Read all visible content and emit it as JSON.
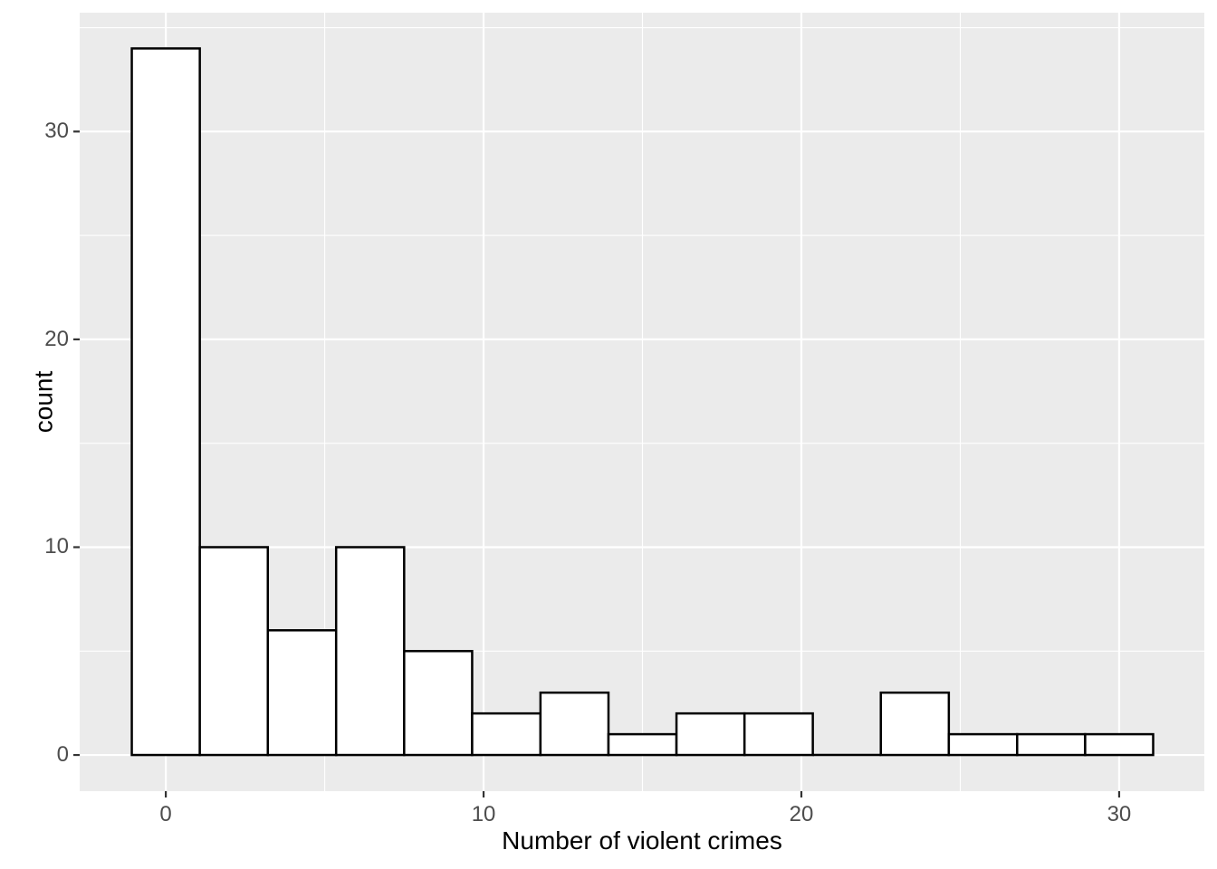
{
  "figure": {
    "background_color": "#FFFFFF",
    "panel_background_color": "#EBEBEB",
    "grid_major_color": "#FFFFFF",
    "grid_minor_color": "#FFFFFF",
    "bar_fill_color": "#FFFFFF",
    "bar_stroke_color": "#000000",
    "tick_mark_color": "#333333",
    "tick_label_color": "#4D4D4D",
    "axis_title_color": "#000000"
  },
  "chart_data": {
    "type": "bar",
    "subtype": "histogram",
    "title": "",
    "xlabel": "Number of violent crimes",
    "ylabel": "count",
    "bin_edges": [
      -1.07,
      1.07,
      3.21,
      5.36,
      7.5,
      9.64,
      11.79,
      13.93,
      16.07,
      18.21,
      20.36,
      22.5,
      24.64,
      26.79,
      28.93,
      31.07
    ],
    "bin_centers": [
      0,
      2.14,
      4.29,
      6.43,
      8.57,
      10.71,
      12.86,
      15,
      17.14,
      19.29,
      21.43,
      23.57,
      25.71,
      27.86,
      30
    ],
    "counts": [
      34,
      10,
      6,
      10,
      5,
      2,
      3,
      1,
      2,
      2,
      0,
      3,
      1,
      1,
      1
    ],
    "x_ticks": [
      0,
      10,
      20,
      30
    ],
    "y_ticks": [
      0,
      10,
      20,
      30
    ],
    "x_minor_breaks": [
      5,
      15,
      25
    ],
    "y_minor_breaks": [
      5,
      15,
      25,
      35
    ],
    "xlim": [
      -2.71,
      32.68
    ],
    "ylim": [
      -1.74,
      35.72
    ],
    "grid": "major-and-minor",
    "legend_position": "none"
  }
}
